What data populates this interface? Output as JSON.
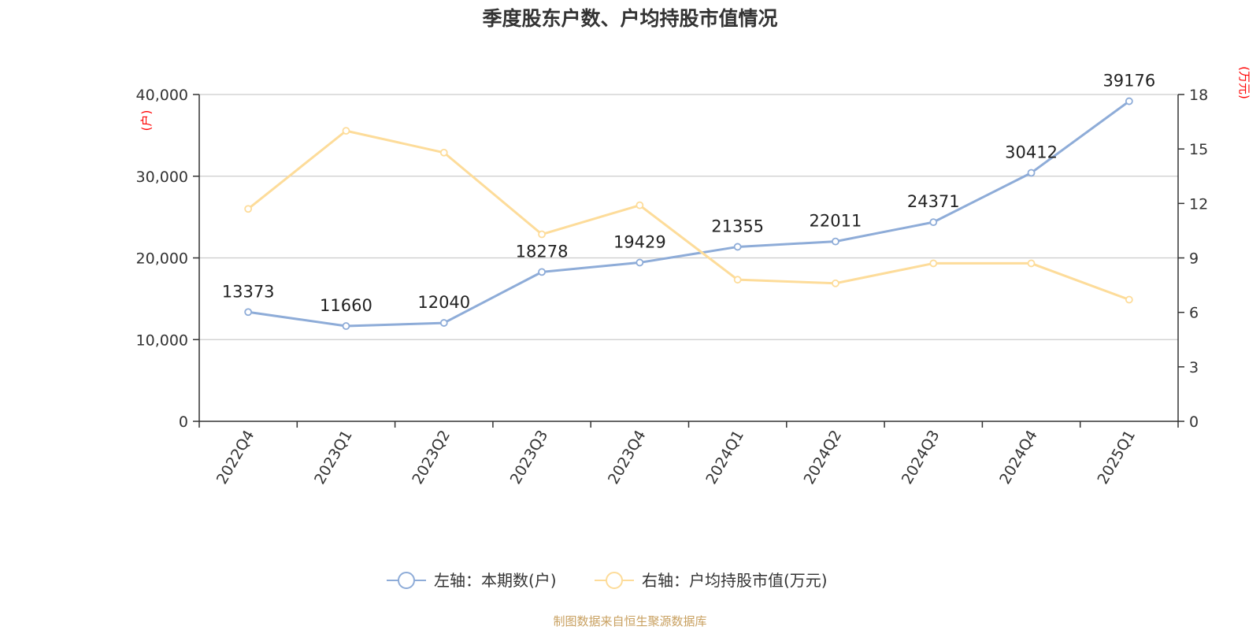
{
  "chart_data": {
    "type": "line",
    "title": "季度股东户数、户均持股市值情况",
    "categories": [
      "2022Q4",
      "2023Q1",
      "2023Q2",
      "2023Q3",
      "2023Q4",
      "2024Q1",
      "2024Q2",
      "2024Q3",
      "2024Q4",
      "2025Q1"
    ],
    "left_axis": {
      "unit": "(户)",
      "range": [
        0,
        40000
      ],
      "ticks": [
        "0",
        "10,000",
        "20,000",
        "30,000",
        "40,000"
      ],
      "tick_values": [
        0,
        10000,
        20000,
        30000,
        40000
      ]
    },
    "right_axis": {
      "unit": "(万元)",
      "range": [
        0,
        18
      ],
      "ticks": [
        "0",
        "3",
        "6",
        "9",
        "12",
        "15",
        "18"
      ],
      "tick_values": [
        0,
        3,
        6,
        9,
        12,
        15,
        18
      ]
    },
    "series": [
      {
        "name": "左轴：本期数(户)",
        "axis": "left",
        "color": "#8eacd8",
        "values": [
          13373,
          11660,
          12040,
          18278,
          19429,
          21355,
          22011,
          24371,
          30412,
          39176
        ],
        "labels": [
          "13373",
          "11660",
          "12040",
          "18278",
          "19429",
          "21355",
          "22011",
          "24371",
          "30412",
          "39176"
        ]
      },
      {
        "name": "右轴：户均持股市值(万元)",
        "axis": "right",
        "color": "#fddc9a",
        "values": [
          11.7,
          16.0,
          14.8,
          10.3,
          11.9,
          7.8,
          7.6,
          8.7,
          8.7,
          6.7
        ]
      }
    ],
    "grid": true,
    "legend": "bottom-center"
  },
  "source": "制图数据来自恒生聚源数据库"
}
